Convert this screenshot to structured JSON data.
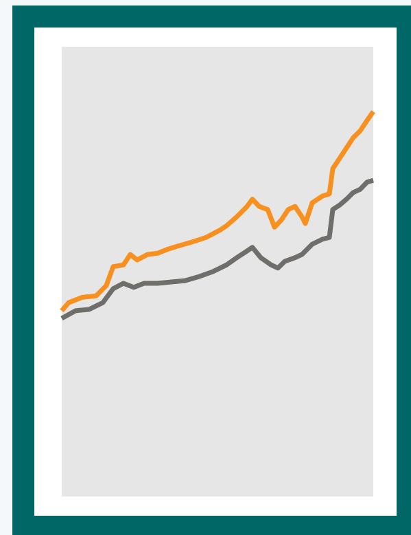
{
  "chart_data": {
    "type": "line",
    "xlim": [
      0,
      100
    ],
    "ylim": [
      0,
      100
    ],
    "series": [
      {
        "color": "#f7901e",
        "x": [
          0,
          2.2,
          6.6,
          11,
          14.3,
          16.5,
          19.8,
          22,
          24.2,
          27.5,
          30.8,
          34.1,
          37.4,
          41.9,
          46.3,
          48.5,
          50.7,
          52.9,
          56.2,
          59.5,
          61.2,
          63.4,
          66.1,
          68.3,
          70.5,
          72.7,
          74.9,
          77.1,
          78.2,
          80.4,
          83.7,
          85.9,
          87,
          89.2,
          91.4,
          93.6,
          95.8,
          98,
          100
        ],
        "values": [
          41.3,
          43.1,
          44.3,
          44.6,
          46.9,
          51.1,
          51.5,
          53.8,
          52.6,
          53.8,
          54.1,
          55.0,
          55.7,
          56.6,
          57.6,
          58.4,
          59.2,
          60.2,
          62.2,
          64.5,
          66.1,
          64.5,
          63.8,
          59.9,
          61.5,
          63.8,
          64.5,
          62.2,
          60.7,
          65.3,
          66.8,
          67.3,
          72.9,
          75.2,
          77.5,
          79.8,
          81.3,
          83.6,
          85.6
        ]
      },
      {
        "color": "#706e6b",
        "x": [
          0,
          4.4,
          8.8,
          13.2,
          16.5,
          19.8,
          23.1,
          26.4,
          30.8,
          35.2,
          39.6,
          44.1,
          48.5,
          52.9,
          56.2,
          59.5,
          61.2,
          63.9,
          67.2,
          69.4,
          71.6,
          74.9,
          77.1,
          80.4,
          83.7,
          85.9,
          87,
          89.2,
          91.4,
          93.6,
          95.8,
          98,
          100
        ],
        "values": [
          39.6,
          41.3,
          41.6,
          43.1,
          46.2,
          47.4,
          46.5,
          47.4,
          47.4,
          47.7,
          48.0,
          48.9,
          50.0,
          51.5,
          53.1,
          54.6,
          55.4,
          53.1,
          51.5,
          50.8,
          52.3,
          53.1,
          53.8,
          56.1,
          57.2,
          57.6,
          63.8,
          64.8,
          66.1,
          67.6,
          68.3,
          69.9,
          70.3
        ]
      }
    ]
  }
}
